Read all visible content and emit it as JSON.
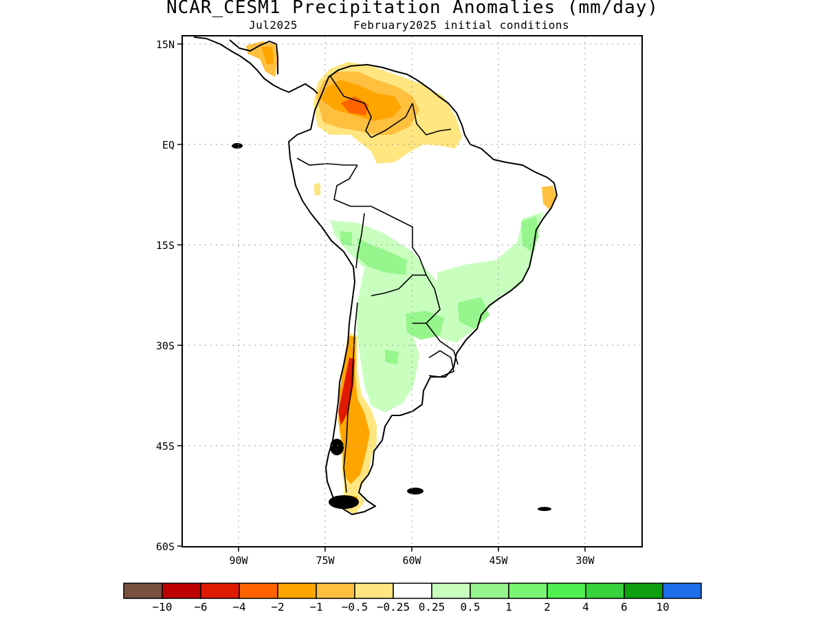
{
  "title": "NCAR_CESM1 Precipitation Anomalies (mm/day)",
  "subtitle_left": "Jul2025",
  "subtitle_right": "February2025 initial conditions",
  "map": {
    "lon_range": [
      -100,
      -20
    ],
    "lat_range": [
      -60,
      15
    ],
    "lat_ticks": [
      {
        "value": 15,
        "label": "15N"
      },
      {
        "value": 0,
        "label": "EQ"
      },
      {
        "value": -15,
        "label": "15S"
      },
      {
        "value": -30,
        "label": "30S"
      },
      {
        "value": -45,
        "label": "45S"
      },
      {
        "value": -60,
        "label": "60S"
      }
    ],
    "lon_ticks": [
      {
        "value": -90,
        "label": "90W"
      },
      {
        "value": -75,
        "label": "75W"
      },
      {
        "value": -60,
        "label": "60W"
      },
      {
        "value": -45,
        "label": "45W"
      },
      {
        "value": -30,
        "label": "30W"
      }
    ],
    "grid": "dotted"
  },
  "legend": {
    "colors": [
      "#7a5040",
      "#be0000",
      "#e01a00",
      "#ff6400",
      "#ffa500",
      "#ffc040",
      "#ffe680",
      "#ffffff",
      "#c8ffbe",
      "#96f58c",
      "#78f573",
      "#50f050",
      "#37d23c",
      "#0fa00f",
      "#1e6eeb"
    ],
    "labels": [
      "−10",
      "−6",
      "−4",
      "−2",
      "−1",
      "−0.5",
      "−0.25",
      "0.25",
      "0.5",
      "1",
      "2",
      "4",
      "6",
      "10"
    ]
  }
}
